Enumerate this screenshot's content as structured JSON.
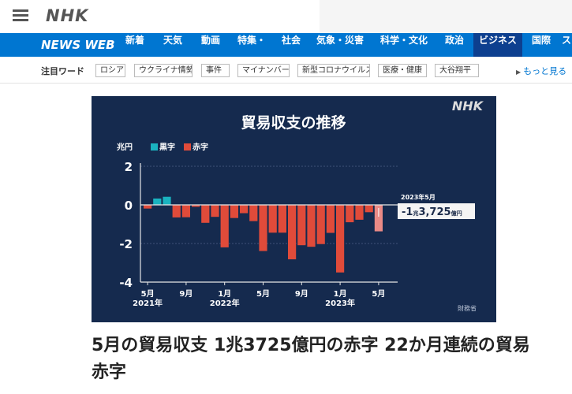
{
  "header": {
    "logo": "NHK",
    "menu_icon": "hamburger-menu-icon"
  },
  "nav": {
    "brand": "NEWS WEB",
    "items": [
      {
        "label": "新着",
        "active": false
      },
      {
        "label": "天気",
        "active": false
      },
      {
        "label": "動画",
        "active": false
      },
      {
        "label": "特集・",
        "active": false
      },
      {
        "label": "社会",
        "active": false
      },
      {
        "label": "気象・災害",
        "active": false
      },
      {
        "label": "科学・文化",
        "active": false
      },
      {
        "label": "政治",
        "active": false
      },
      {
        "label": "ビジネス",
        "active": true
      },
      {
        "label": "国際",
        "active": false
      },
      {
        "label": "ス",
        "active": false
      }
    ],
    "bg_color": "#0076d1",
    "active_color": "#0d3f8f"
  },
  "keywords": {
    "label": "注目ワード",
    "tags": [
      "ロシア",
      "ウクライナ情勢",
      "事件",
      "マイナンバー",
      "新型コロナウイルス",
      "医療・健康",
      "大谷翔平"
    ],
    "more": "もっと見る"
  },
  "chart_data": {
    "type": "bar",
    "title": "貿易収支の推移",
    "logo": "NHK",
    "unit_label": "兆円",
    "legend": [
      {
        "name": "黒字",
        "color": "#1ab3c0"
      },
      {
        "name": "赤字",
        "color": "#e04b3a"
      }
    ],
    "ylim": [
      -4,
      2
    ],
    "yticks": [
      2,
      0,
      -2,
      -4
    ],
    "x_tick_labels": [
      {
        "index": 0,
        "month": "5月",
        "year": "2021年"
      },
      {
        "index": 4,
        "month": "9月",
        "year": ""
      },
      {
        "index": 8,
        "month": "1月",
        "year": "2022年"
      },
      {
        "index": 12,
        "month": "5月",
        "year": ""
      },
      {
        "index": 16,
        "month": "9月",
        "year": ""
      },
      {
        "index": 20,
        "month": "1月",
        "year": "2023年"
      },
      {
        "index": 24,
        "month": "5月",
        "year": ""
      }
    ],
    "values": [
      -0.19,
      0.33,
      0.42,
      -0.65,
      -0.64,
      -0.1,
      -0.93,
      -0.62,
      -2.2,
      -0.68,
      -0.43,
      -0.84,
      -2.39,
      -1.44,
      -1.44,
      -2.82,
      -2.09,
      -2.17,
      -2.03,
      -1.45,
      -3.5,
      -0.9,
      -0.77,
      -0.38,
      -1.37
    ],
    "callout": {
      "label": "2023年5月",
      "value_prefix": "-1",
      "value_unit1": "兆",
      "value_main": "3,725",
      "value_unit2": "億円"
    },
    "source": "財務省",
    "bg_color": "#152a4e",
    "surplus_color": "#1ab3c0",
    "deficit_color": "#e04b3a",
    "latest_color": "#ea8a86"
  },
  "article": {
    "headline": "5月の貿易収支 1兆3725億円の赤字 22か月連続の貿易赤字"
  }
}
